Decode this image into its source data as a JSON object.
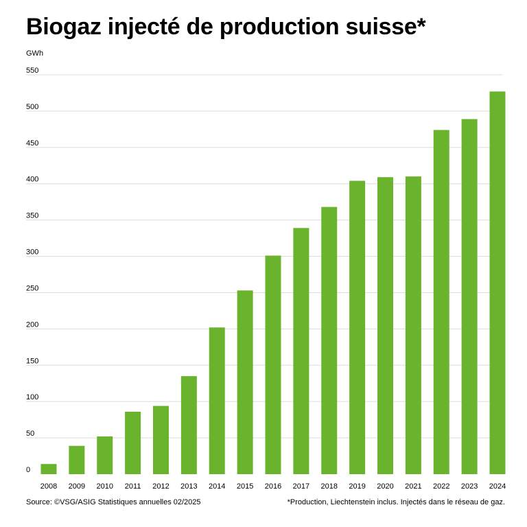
{
  "title": "Biogaz injecté de production suisse*",
  "source": "Source: ©VSG/ASIG Statistiques annuelles 02/2025",
  "footnote": "*Production, Liechtenstein inclus. Injectés dans le réseau de gaz.",
  "colors": {
    "bar": "#6ab42d",
    "grid": "#dcdcdc",
    "text": "#000000"
  },
  "chart_data": {
    "type": "bar",
    "title": "Biogaz injecté de production suisse*",
    "xlabel": "",
    "ylabel": "GWh",
    "ylim": [
      0,
      550
    ],
    "yticks": [
      0,
      50,
      100,
      150,
      200,
      250,
      300,
      350,
      400,
      450,
      500,
      550
    ],
    "grid": true,
    "categories": [
      "2008",
      "2009",
      "2010",
      "2011",
      "2012",
      "2013",
      "2014",
      "2015",
      "2016",
      "2017",
      "2018",
      "2019",
      "2020",
      "2021",
      "2022",
      "2023",
      "2024"
    ],
    "values": [
      14,
      39,
      52,
      86,
      94,
      135,
      202,
      253,
      301,
      339,
      368,
      404,
      409,
      410,
      474,
      489,
      527
    ]
  }
}
